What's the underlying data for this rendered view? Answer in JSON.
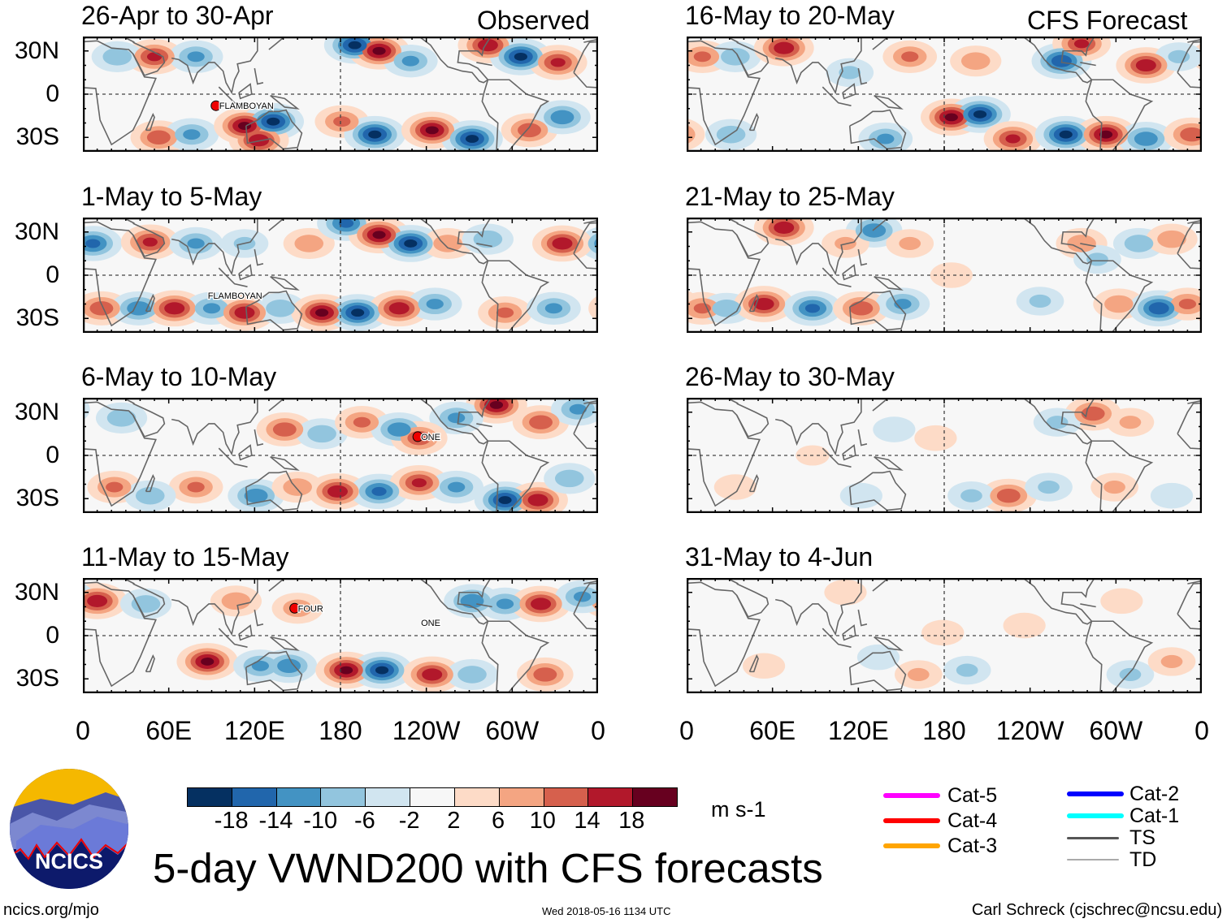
{
  "title": "5-day VWND200 with CFS forecasts",
  "column_headers": {
    "observed": "Observed",
    "forecast": "CFS Forecast"
  },
  "y_ticks": [
    "30N",
    "0",
    "30S"
  ],
  "x_ticks": [
    "0",
    "60E",
    "120E",
    "180",
    "120W",
    "60W",
    "0"
  ],
  "units": "m s-1",
  "colorbar": {
    "labels": [
      "-18",
      "-14",
      "-10",
      "-6",
      "-2",
      "2",
      "6",
      "10",
      "14",
      "18"
    ],
    "colors": [
      "#053061",
      "#2166ac",
      "#4393c3",
      "#92c5de",
      "#d1e5f0",
      "#f7f7f7",
      "#fddbc7",
      "#f4a582",
      "#d6604d",
      "#b2182b",
      "#67001f"
    ]
  },
  "legend": [
    {
      "label": "Cat-5",
      "color": "#ff00ff"
    },
    {
      "label": "Cat-4",
      "color": "#ff0000"
    },
    {
      "label": "Cat-3",
      "color": "#ffa500"
    },
    {
      "label": "Cat-2",
      "color": "#0000ff"
    },
    {
      "label": "Cat-1",
      "color": "#00ffff"
    },
    {
      "label": "TS",
      "color": "#555555"
    },
    {
      "label": "TD",
      "color": "#aaaaaa"
    }
  ],
  "logo_text": "NCICS",
  "footer": {
    "left": "ncics.org/mjo",
    "center": "Wed 2018-05-16 1134 UTC",
    "right": "Carl Schreck (cjschrec@ncsu.edu)"
  },
  "chart_data": {
    "type": "heatmap",
    "variable": "200-hPa meridional wind anomaly",
    "lon_range": [
      0,
      360
    ],
    "lat_range": [
      -40,
      40
    ],
    "panels": [
      {
        "period": "26-Apr to 30-Apr",
        "source": "Observed",
        "storms": [
          {
            "name": "FLAMBOYAN",
            "lon": 93,
            "lat": -8
          }
        ],
        "anomalies": [
          [
            50,
            26,
            16
          ],
          [
            24,
            26,
            -10
          ],
          [
            79,
            26,
            -12
          ],
          [
            190,
            34,
            -20
          ],
          [
            207,
            30,
            20
          ],
          [
            229,
            23,
            -12
          ],
          [
            283,
            34,
            18
          ],
          [
            306,
            26,
            -20
          ],
          [
            332,
            22,
            16
          ],
          [
            53,
            -30,
            14
          ],
          [
            76,
            -28,
            -12
          ],
          [
            113,
            -22,
            20
          ],
          [
            133,
            -19,
            -20
          ],
          [
            123,
            -32,
            18
          ],
          [
            181,
            -19,
            12
          ],
          [
            204,
            -28,
            -20
          ],
          [
            244,
            -25,
            20
          ],
          [
            272,
            -31,
            -20
          ],
          [
            312,
            -25,
            14
          ],
          [
            335,
            -16,
            -14
          ]
        ]
      },
      {
        "period": "1-May to 5-May",
        "source": "Observed",
        "storms": [
          {
            "name": "FLAMBOYAN",
            "lon": 85,
            "lat": -14,
            "label_only": true
          }
        ],
        "anomalies": [
          [
            7,
            22,
            -16
          ],
          [
            47,
            23,
            16
          ],
          [
            79,
            22,
            -12
          ],
          [
            113,
            22,
            -8
          ],
          [
            158,
            22,
            10
          ],
          [
            184,
            36,
            -16
          ],
          [
            207,
            28,
            20
          ],
          [
            229,
            22,
            -20
          ],
          [
            255,
            22,
            10
          ],
          [
            283,
            25,
            -10
          ],
          [
            335,
            22,
            18
          ],
          [
            13,
            -23,
            14
          ],
          [
            39,
            -23,
            -14
          ],
          [
            64,
            -23,
            18
          ],
          [
            90,
            -23,
            -12
          ],
          [
            113,
            -26,
            18
          ],
          [
            138,
            -23,
            -10
          ],
          [
            167,
            -26,
            20
          ],
          [
            192,
            -26,
            -20
          ],
          [
            221,
            -23,
            18
          ],
          [
            246,
            -20,
            -12
          ],
          [
            295,
            -26,
            12
          ],
          [
            329,
            -23,
            -12
          ]
        ]
      },
      {
        "period": "6-May to 10-May",
        "source": "Observed",
        "storms": [
          {
            "name": "ONE",
            "lon": 234,
            "lat": 13
          }
        ],
        "anomalies": [
          [
            289,
            35,
            20
          ],
          [
            261,
            26,
            -12
          ],
          [
            320,
            23,
            14
          ],
          [
            346,
            32,
            -12
          ],
          [
            27,
            26,
            -10
          ],
          [
            141,
            18,
            14
          ],
          [
            167,
            15,
            -10
          ],
          [
            195,
            23,
            12
          ],
          [
            221,
            18,
            -14
          ],
          [
            235,
            12,
            14
          ],
          [
            22,
            -22,
            12
          ],
          [
            79,
            -22,
            12
          ],
          [
            47,
            -28,
            -10
          ],
          [
            121,
            -28,
            -14
          ],
          [
            150,
            -22,
            10
          ],
          [
            178,
            -25,
            18
          ],
          [
            207,
            -25,
            -16
          ],
          [
            235,
            -19,
            16
          ],
          [
            261,
            -22,
            -12
          ],
          [
            295,
            -31,
            -20
          ],
          [
            318,
            -31,
            18
          ],
          [
            340,
            -16,
            -10
          ]
        ]
      },
      {
        "period": "11-May to 15-May",
        "source": "Observed",
        "storms": [
          {
            "name": "FOUR",
            "lon": 148,
            "lat": 19
          },
          {
            "name": "ONE",
            "lon": 234,
            "lat": 9,
            "label_only": true
          }
        ],
        "anomalies": [
          [
            10,
            24,
            18
          ],
          [
            44,
            22,
            -10
          ],
          [
            107,
            24,
            10
          ],
          [
            150,
            19,
            10
          ],
          [
            272,
            24,
            -14
          ],
          [
            295,
            22,
            -12
          ],
          [
            320,
            22,
            18
          ],
          [
            349,
            27,
            -12
          ],
          [
            87,
            -18,
            20
          ],
          [
            124,
            -21,
            -12
          ],
          [
            144,
            -21,
            -14
          ],
          [
            184,
            -24,
            20
          ],
          [
            209,
            -24,
            -20
          ],
          [
            244,
            -27,
            18
          ],
          [
            272,
            -27,
            -10
          ],
          [
            323,
            -27,
            14
          ]
        ]
      },
      {
        "period": "16-May to 20-May",
        "source": "CFS Forecast",
        "storms": [],
        "anomalies": [
          [
            11,
            26,
            12
          ],
          [
            34,
            26,
            -10
          ],
          [
            68,
            32,
            18
          ],
          [
            114,
            15,
            -8
          ],
          [
            156,
            26,
            12
          ],
          [
            202,
            23,
            10
          ],
          [
            262,
            23,
            -18
          ],
          [
            276,
            35,
            16
          ],
          [
            321,
            20,
            18
          ],
          [
            344,
            26,
            -8
          ],
          [
            139,
            -31,
            -12
          ],
          [
            185,
            -16,
            20
          ],
          [
            205,
            -14,
            -20
          ],
          [
            228,
            -31,
            16
          ],
          [
            265,
            -28,
            -20
          ],
          [
            293,
            -28,
            20
          ],
          [
            321,
            -31,
            -14
          ],
          [
            353,
            -28,
            14
          ],
          [
            31,
            -28,
            -10
          ]
        ]
      },
      {
        "period": "21-May to 25-May",
        "source": "CFS Forecast",
        "storms": [],
        "anomalies": [
          [
            68,
            33,
            18
          ],
          [
            131,
            31,
            -14
          ],
          [
            111,
            22,
            8
          ],
          [
            156,
            22,
            8
          ],
          [
            276,
            22,
            10
          ],
          [
            287,
            11,
            -8
          ],
          [
            316,
            22,
            -10
          ],
          [
            339,
            25,
            10
          ],
          [
            11,
            -23,
            12
          ],
          [
            28,
            -23,
            -10
          ],
          [
            54,
            -20,
            18
          ],
          [
            88,
            -23,
            -16
          ],
          [
            122,
            -23,
            14
          ],
          [
            151,
            -20,
            -12
          ],
          [
            185,
            0,
            6
          ],
          [
            247,
            -18,
            -8
          ],
          [
            302,
            -20,
            10
          ],
          [
            330,
            -23,
            -18
          ],
          [
            350,
            -20,
            12
          ]
        ]
      },
      {
        "period": "26-May to 30-May",
        "source": "CFS Forecast",
        "storms": [],
        "anomalies": [
          [
            284,
            29,
            14
          ],
          [
            310,
            23,
            8
          ],
          [
            259,
            23,
            -8
          ],
          [
            145,
            18,
            -6
          ],
          [
            174,
            12,
            6
          ],
          [
            34,
            -22,
            6
          ],
          [
            88,
            0,
            4
          ],
          [
            225,
            -28,
            14
          ],
          [
            199,
            -28,
            -8
          ],
          [
            253,
            -22,
            -8
          ],
          [
            299,
            -22,
            8
          ],
          [
            339,
            -28,
            -6
          ],
          [
            122,
            -28,
            -6
          ]
        ]
      },
      {
        "period": "31-May to 4-Jun",
        "source": "CFS Forecast",
        "storms": [],
        "anomalies": [
          [
            179,
            2,
            6
          ],
          [
            236,
            7,
            6
          ],
          [
            134,
            -15,
            -6
          ],
          [
            162,
            -27,
            8
          ],
          [
            196,
            -24,
            -8
          ],
          [
            310,
            -27,
            -8
          ],
          [
            339,
            -18,
            8
          ],
          [
            54,
            -21,
            6
          ],
          [
            111,
            30,
            6
          ],
          [
            304,
            24,
            6
          ]
        ]
      }
    ]
  }
}
